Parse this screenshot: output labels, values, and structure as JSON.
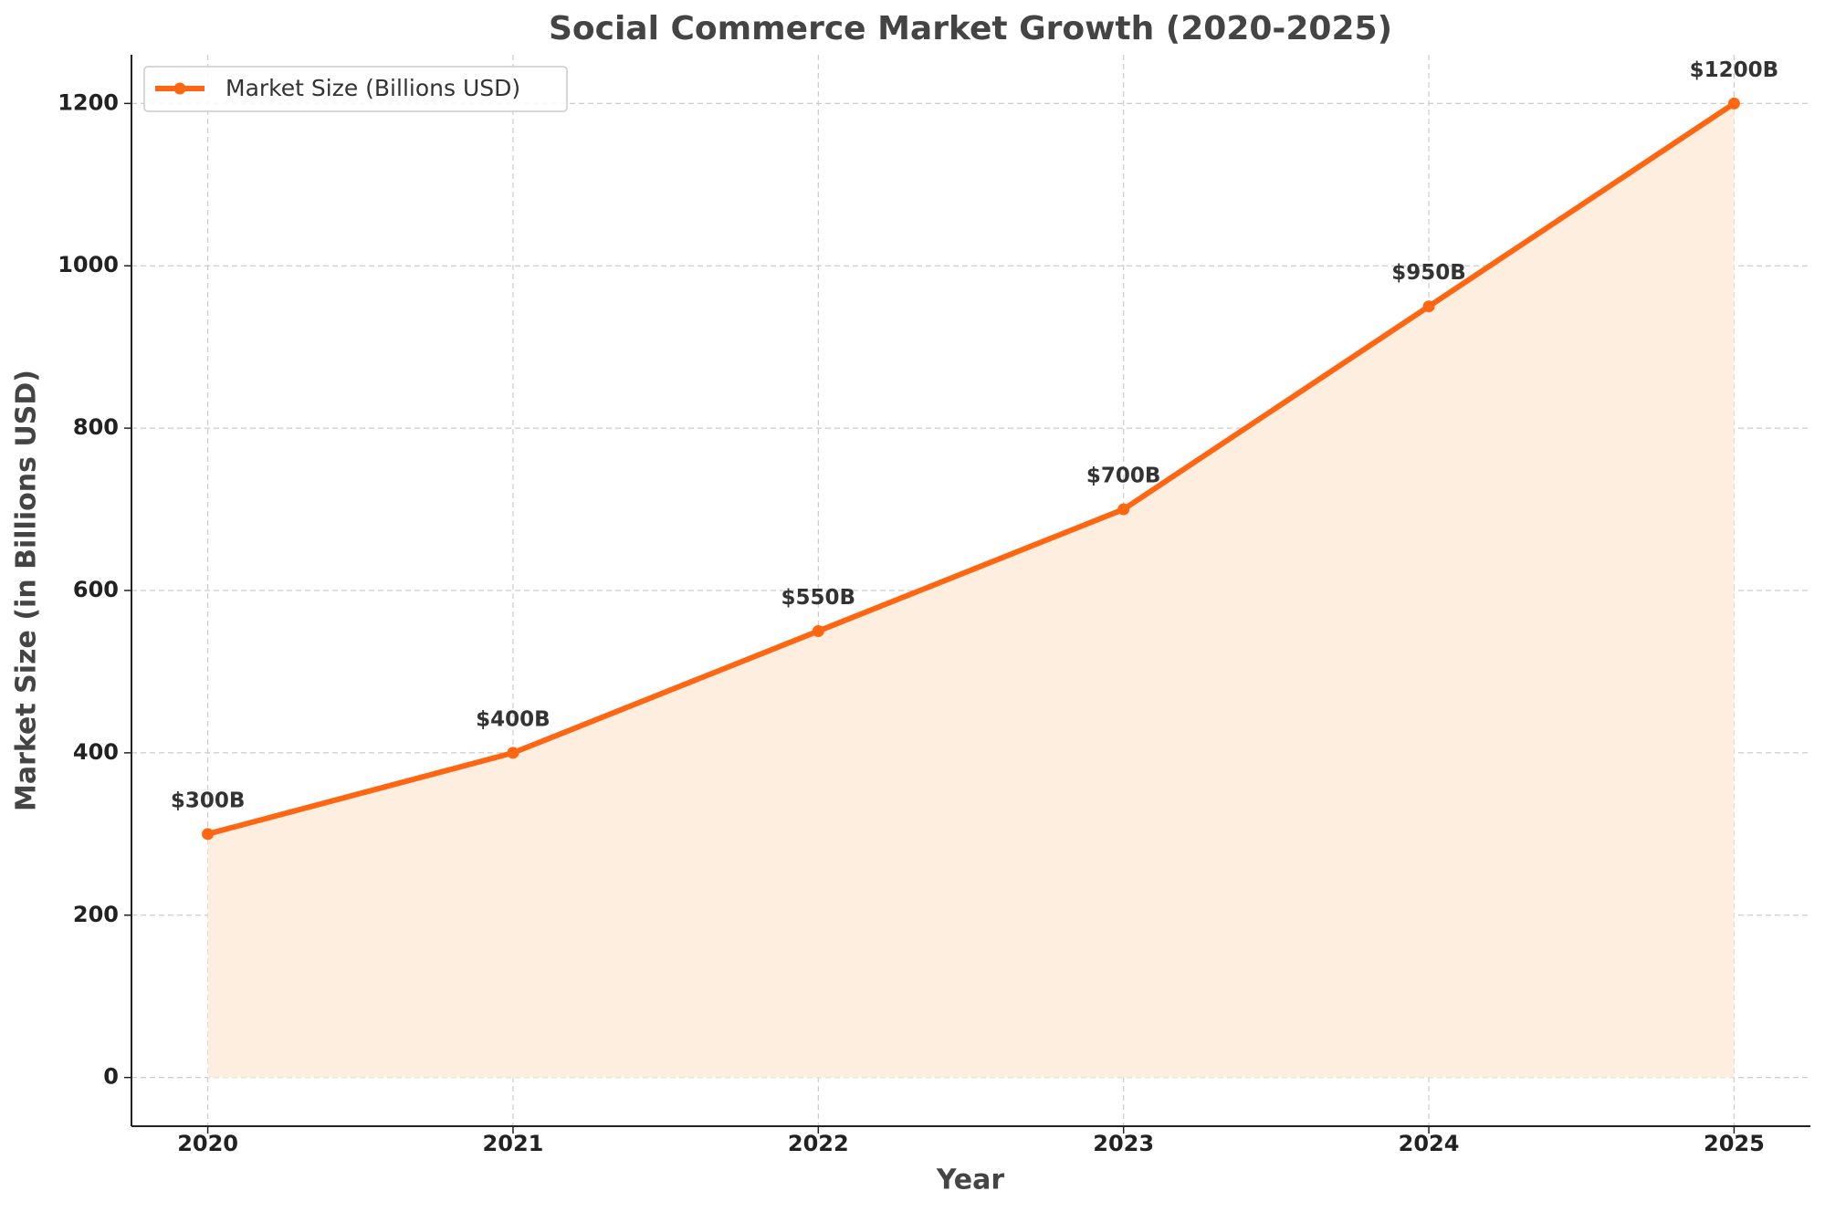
{
  "chart_data": {
    "type": "line",
    "title": "Social Commerce Market Growth (2020-2025)",
    "x_label": "Year",
    "y_label": "Market Size (in Billions USD)",
    "x": [
      2020,
      2021,
      2022,
      2023,
      2024,
      2025
    ],
    "series": [
      {
        "name": "Market Size (Billions USD)",
        "color": "#ff6611",
        "fill": "#fdeee0",
        "values": [
          300,
          400,
          550,
          700,
          950,
          1200
        ],
        "value_labels": [
          "$300B",
          "$400B",
          "$550B",
          "$700B",
          "$950B",
          "$1200B"
        ]
      }
    ],
    "xlim": [
      2019.75,
      2025.25
    ],
    "xticks": [
      2020,
      2021,
      2022,
      2023,
      2024,
      2025
    ],
    "ylim": [
      -60,
      1260
    ],
    "yticks": [
      0,
      200,
      400,
      600,
      800,
      1000,
      1200
    ],
    "grid": true,
    "legend": "upper-left"
  }
}
